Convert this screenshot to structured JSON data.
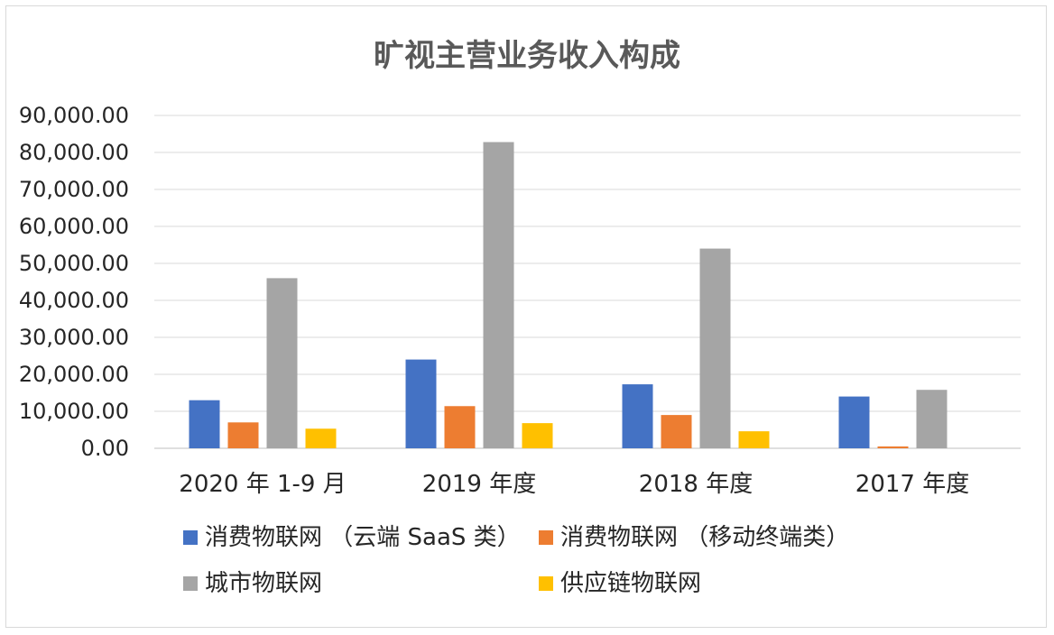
{
  "chart_data": {
    "type": "bar",
    "title": "旷视主营业务收入构成",
    "categories": [
      "2020 年 1-9 月",
      "2019 年度",
      "2018 年度",
      "2017 年度"
    ],
    "series": [
      {
        "name": "消费物联网 （云端 SaaS 类）",
        "color": "#4472c4",
        "values": [
          13000,
          24000,
          17300,
          14000
        ]
      },
      {
        "name": "消费物联网 （移动终端类）",
        "color": "#ed7d31",
        "values": [
          7000,
          11400,
          9000,
          500
        ]
      },
      {
        "name": "城市物联网",
        "color": "#a5a5a5",
        "values": [
          46000,
          82800,
          54000,
          15800
        ]
      },
      {
        "name": "供应链物联网",
        "color": "#ffc000",
        "values": [
          5300,
          6800,
          4600,
          0
        ]
      }
    ],
    "ylim": [
      0,
      90000
    ],
    "yticks": [
      "0.00",
      "10,000.00",
      "20,000.00",
      "30,000.00",
      "40,000.00",
      "50,000.00",
      "60,000.00",
      "70,000.00",
      "80,000.00",
      "90,000.00"
    ],
    "grid": true,
    "legend_position": "bottom"
  }
}
